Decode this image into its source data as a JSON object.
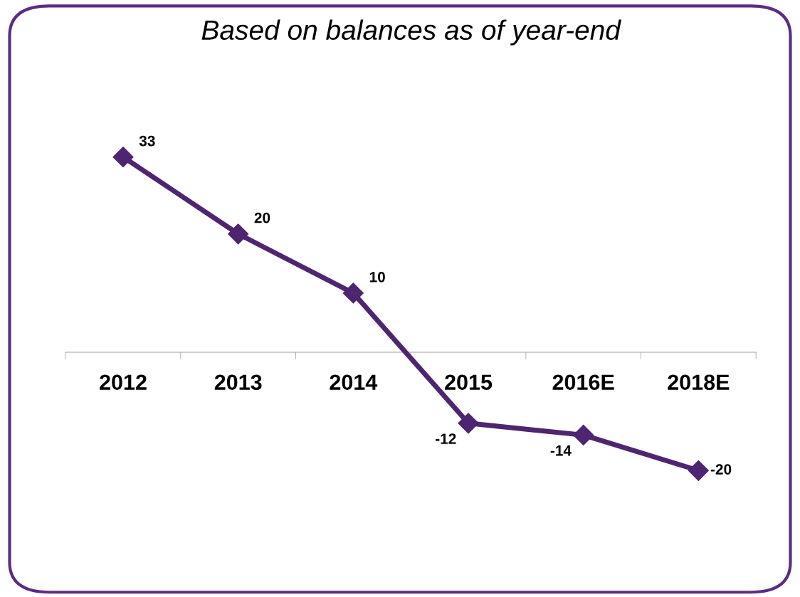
{
  "chart_data": {
    "type": "line",
    "title": "Based on balances as of year-end",
    "categories": [
      "2012",
      "2013",
      "2014",
      "2015",
      "2016E",
      "2018E"
    ],
    "values": [
      33,
      20,
      10,
      -12,
      -14,
      -20
    ],
    "color": "#4e2570",
    "marker": "diamond",
    "line_style": "solid",
    "tick_labels": "x",
    "data_labels": true,
    "grid": false,
    "legend": false
  }
}
